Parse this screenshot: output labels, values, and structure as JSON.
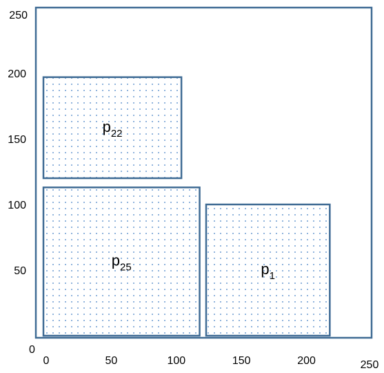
{
  "chart_data": {
    "type": "diagram",
    "container": {
      "x_range": [
        0,
        250
      ],
      "y_range": [
        0,
        250
      ]
    },
    "axis": {
      "origin_label": "0",
      "x_ticks": [
        {
          "value": 0,
          "label": "0"
        },
        {
          "value": 50,
          "label": "50"
        },
        {
          "value": 100,
          "label": "100"
        },
        {
          "value": 150,
          "label": "150"
        },
        {
          "value": 200,
          "label": "200"
        },
        {
          "value": 250,
          "label": "250"
        }
      ],
      "y_ticks": [
        {
          "value": 50,
          "label": "50"
        },
        {
          "value": 100,
          "label": "100"
        },
        {
          "value": 150,
          "label": "150"
        },
        {
          "value": 200,
          "label": "200"
        },
        {
          "value": 250,
          "label": "250"
        }
      ]
    },
    "rectangles": [
      {
        "id": "p22",
        "base": "p",
        "sub": "22",
        "x0": 0,
        "x1": 106,
        "y0": 120,
        "y1": 197
      },
      {
        "id": "p25",
        "base": "p",
        "sub": "25",
        "x0": 0,
        "x1": 120,
        "y0": 0,
        "y1": 113
      },
      {
        "id": "p1",
        "base": "p",
        "sub": "1",
        "x0": 125,
        "x1": 220,
        "y0": 0,
        "y1": 100
      }
    ]
  },
  "style": {
    "outline_color": "#3f6b94",
    "fill_color": "#ffffff",
    "dot_color": "#8fb3dc"
  }
}
